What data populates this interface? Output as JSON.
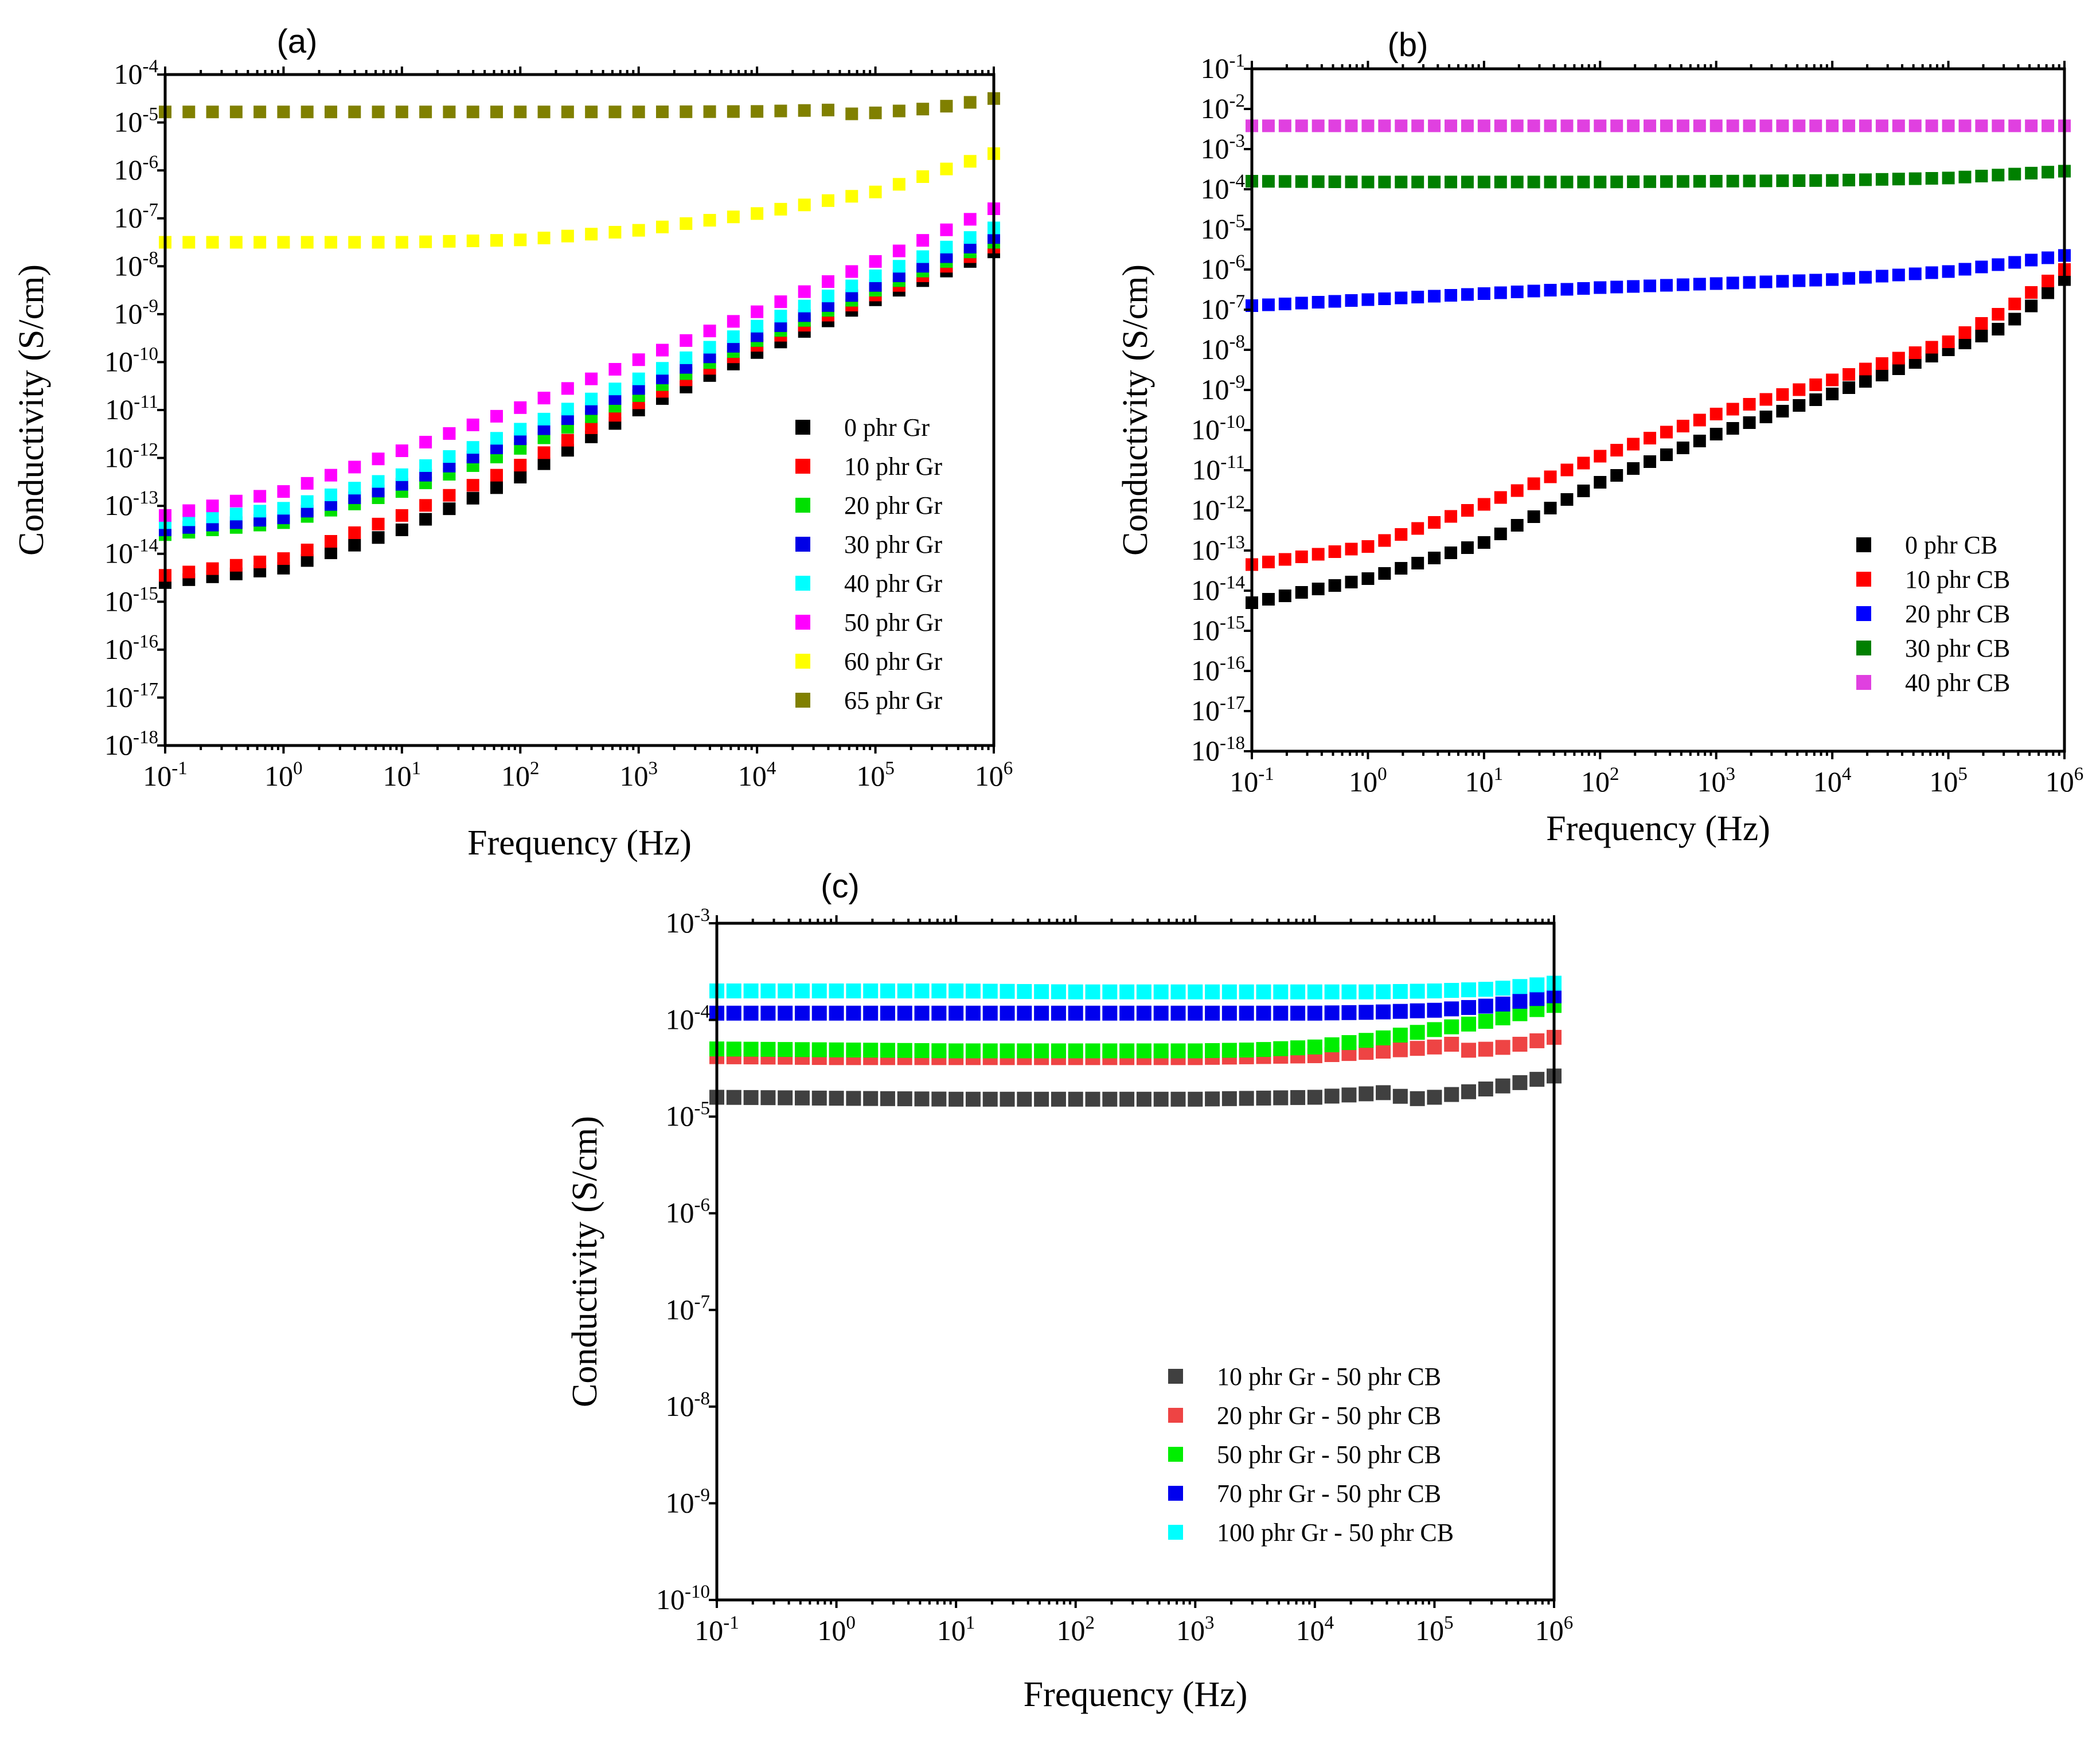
{
  "chart_data": [
    {
      "panel": "(a)",
      "type": "scatter",
      "xscale": "log",
      "yscale": "log",
      "xlabel": "Frequency (Hz)",
      "ylabel": "Conductivity (S/cm)",
      "xlim_exp": [
        -1,
        6
      ],
      "ylim_exp": [
        -18,
        -4
      ],
      "xtick_exps": [
        "-1",
        "0",
        "1",
        "2",
        "3",
        "4",
        "5",
        "6"
      ],
      "ytick_exps": [
        "-18",
        "-17",
        "-16",
        "-15",
        "-14",
        "-13",
        "-12",
        "-11",
        "-10",
        "-9",
        "-8",
        "-7",
        "-6",
        "-5",
        "-4"
      ],
      "tick_base": "10",
      "legend_position": "lower-right",
      "points_per_series": 36,
      "series": [
        {
          "name": "0 phr Gr",
          "color": "#000000",
          "log_freq": [
            -1,
            0,
            1,
            2,
            3,
            4,
            5,
            6
          ],
          "log_sigma": [
            -14.6,
            -14.3,
            -13.5,
            -12.4,
            -11.0,
            -9.8,
            -8.7,
            -7.7
          ]
        },
        {
          "name": "10 phr Gr",
          "color": "#ff0000",
          "log_freq": [
            -1,
            0,
            1,
            2,
            3,
            4,
            5,
            6
          ],
          "log_sigma": [
            -14.45,
            -14.1,
            -13.2,
            -12.15,
            -10.85,
            -9.65,
            -8.6,
            -7.6
          ]
        },
        {
          "name": "20 phr Gr",
          "color": "#00e000",
          "log_freq": [
            -1,
            0,
            1,
            2,
            3,
            4,
            5,
            6
          ],
          "log_sigma": [
            -13.6,
            -13.35,
            -12.7,
            -11.8,
            -10.7,
            -9.55,
            -8.5,
            -7.5
          ]
        },
        {
          "name": "30 phr Gr",
          "color": "#0000e6",
          "log_freq": [
            -1,
            0,
            1,
            2,
            3,
            4,
            5,
            6
          ],
          "log_sigma": [
            -13.5,
            -13.25,
            -12.55,
            -11.6,
            -10.55,
            -9.45,
            -8.4,
            -7.4
          ]
        },
        {
          "name": "40 phr Gr",
          "color": "#00ffff",
          "log_freq": [
            -1,
            0,
            1,
            2,
            3,
            4,
            5,
            6
          ],
          "log_sigma": [
            -13.35,
            -13.05,
            -12.35,
            -11.4,
            -10.35,
            -9.25,
            -8.2,
            -7.2
          ]
        },
        {
          "name": "50 phr Gr",
          "color": "#ff00ff",
          "log_freq": [
            -1,
            0,
            1,
            2,
            3,
            4,
            5,
            6
          ],
          "log_sigma": [
            -13.2,
            -12.7,
            -11.85,
            -10.95,
            -9.95,
            -8.95,
            -7.9,
            -6.8
          ]
        },
        {
          "name": "60 phr Gr",
          "color": "#ffff00",
          "log_freq": [
            -1,
            0,
            1,
            2,
            3,
            4,
            5,
            6
          ],
          "log_sigma": [
            -7.5,
            -7.5,
            -7.5,
            -7.45,
            -7.25,
            -6.9,
            -6.45,
            -5.65
          ]
        },
        {
          "name": "65 phr Gr",
          "color": "#808000",
          "log_freq": [
            -1,
            0,
            1,
            2,
            3,
            4,
            4.6,
            4.8,
            5,
            5.5,
            6
          ],
          "log_sigma": [
            -4.78,
            -4.78,
            -4.78,
            -4.78,
            -4.78,
            -4.77,
            -4.74,
            -4.82,
            -4.8,
            -4.7,
            -4.5
          ]
        }
      ]
    },
    {
      "panel": "(b)",
      "type": "scatter",
      "xscale": "log",
      "yscale": "log",
      "xlabel": "Frequency (Hz)",
      "ylabel": "Conductivity (S/cm)",
      "xlim_exp": [
        -1,
        6
      ],
      "ylim_exp": [
        -18,
        -1
      ],
      "xtick_exps": [
        "-1",
        "0",
        "1",
        "2",
        "3",
        "4",
        "5",
        "6"
      ],
      "ytick_exps": [
        "-18",
        "-17",
        "-16",
        "-15",
        "-14",
        "-13",
        "-12",
        "-11",
        "-10",
        "-9",
        "-8",
        "-7",
        "-6",
        "-5",
        "-4",
        "-3",
        "-2",
        "-1"
      ],
      "tick_base": "10",
      "legend_position": "lower-right",
      "points_per_series": 50,
      "series": [
        {
          "name": "0 phr CB",
          "color": "#000000",
          "log_freq": [
            -1,
            0,
            1,
            2,
            3,
            4,
            5,
            5.5,
            6
          ],
          "log_sigma": [
            -14.3,
            -13.7,
            -12.8,
            -11.3,
            -10.1,
            -9.1,
            -8.0,
            -7.4,
            -6.25
          ]
        },
        {
          "name": "10 phr CB",
          "color": "#ff0000",
          "log_freq": [
            -1,
            0,
            1,
            2,
            3,
            4,
            5,
            5.5,
            6
          ],
          "log_sigma": [
            -13.35,
            -12.9,
            -11.85,
            -10.65,
            -9.6,
            -8.75,
            -7.8,
            -7.0,
            -6.0
          ]
        },
        {
          "name": "20 phr CB",
          "color": "#0000ff",
          "log_freq": [
            -1,
            0,
            1,
            2,
            3,
            4,
            5,
            6
          ],
          "log_sigma": [
            -6.9,
            -6.75,
            -6.6,
            -6.45,
            -6.35,
            -6.25,
            -6.05,
            -5.65
          ]
        },
        {
          "name": "30 phr CB",
          "color": "#008000",
          "log_freq": [
            -1,
            0,
            1,
            2,
            3,
            4,
            5,
            6
          ],
          "log_sigma": [
            -3.8,
            -3.82,
            -3.82,
            -3.82,
            -3.8,
            -3.78,
            -3.72,
            -3.55
          ]
        },
        {
          "name": "40 phr CB",
          "color": "#e040e0",
          "log_freq": [
            -1,
            6
          ],
          "log_sigma": [
            -2.42,
            -2.42
          ]
        }
      ]
    },
    {
      "panel": "(c)",
      "type": "scatter",
      "xscale": "log",
      "yscale": "log",
      "xlabel": "Frequency (Hz)",
      "ylabel": "Conductivity (S/cm)",
      "xlim_exp": [
        -1,
        6
      ],
      "ylim_exp": [
        -10,
        -3
      ],
      "xtick_exps": [
        "-1",
        "0",
        "1",
        "2",
        "3",
        "4",
        "5",
        "6"
      ],
      "ytick_exps": [
        "-10",
        "-9",
        "-8",
        "-7",
        "-6",
        "-5",
        "-4",
        "-3"
      ],
      "tick_base": "10",
      "legend_position": "lower-right",
      "points_per_series": 50,
      "series": [
        {
          "name": "10 phr Gr - 50 phr CB",
          "color": "#404040",
          "log_freq": [
            -1,
            0,
            1,
            2,
            3,
            4,
            4.6,
            4.8,
            5,
            5.5,
            6
          ],
          "log_sigma": [
            -4.8,
            -4.81,
            -4.82,
            -4.82,
            -4.82,
            -4.8,
            -4.75,
            -4.82,
            -4.8,
            -4.7,
            -4.58
          ]
        },
        {
          "name": "20 phr Gr - 50 phr CB",
          "color": "#ee4444",
          "log_freq": [
            -1,
            0,
            1,
            2,
            3,
            4,
            4.5,
            5,
            5.15,
            5.3,
            5.6,
            6
          ],
          "log_sigma": [
            -4.38,
            -4.39,
            -4.39,
            -4.39,
            -4.39,
            -4.37,
            -4.33,
            -4.28,
            -4.25,
            -4.32,
            -4.28,
            -4.18
          ]
        },
        {
          "name": "50 phr Gr - 50 phr CB",
          "color": "#00ee00",
          "log_freq": [
            -1,
            0,
            1,
            2,
            3,
            3.5,
            4,
            4.5,
            5,
            5.5,
            6
          ],
          "log_sigma": [
            -4.3,
            -4.31,
            -4.32,
            -4.32,
            -4.32,
            -4.31,
            -4.28,
            -4.2,
            -4.1,
            -4.0,
            -3.85
          ]
        },
        {
          "name": "70 phr Gr - 50 phr CB",
          "color": "#0000ee",
          "log_freq": [
            -1,
            0,
            1,
            2,
            3,
            4,
            4.5,
            5,
            5.5,
            6
          ],
          "log_sigma": [
            -3.93,
            -3.93,
            -3.93,
            -3.93,
            -3.93,
            -3.93,
            -3.92,
            -3.9,
            -3.85,
            -3.75
          ]
        },
        {
          "name": "100 phr Gr - 50 phr CB",
          "color": "#00ffff",
          "log_freq": [
            -1,
            0,
            1,
            2,
            3,
            4,
            4.5,
            5,
            5.5,
            6
          ],
          "log_sigma": [
            -3.7,
            -3.7,
            -3.7,
            -3.71,
            -3.71,
            -3.71,
            -3.71,
            -3.7,
            -3.68,
            -3.62
          ]
        }
      ]
    }
  ]
}
